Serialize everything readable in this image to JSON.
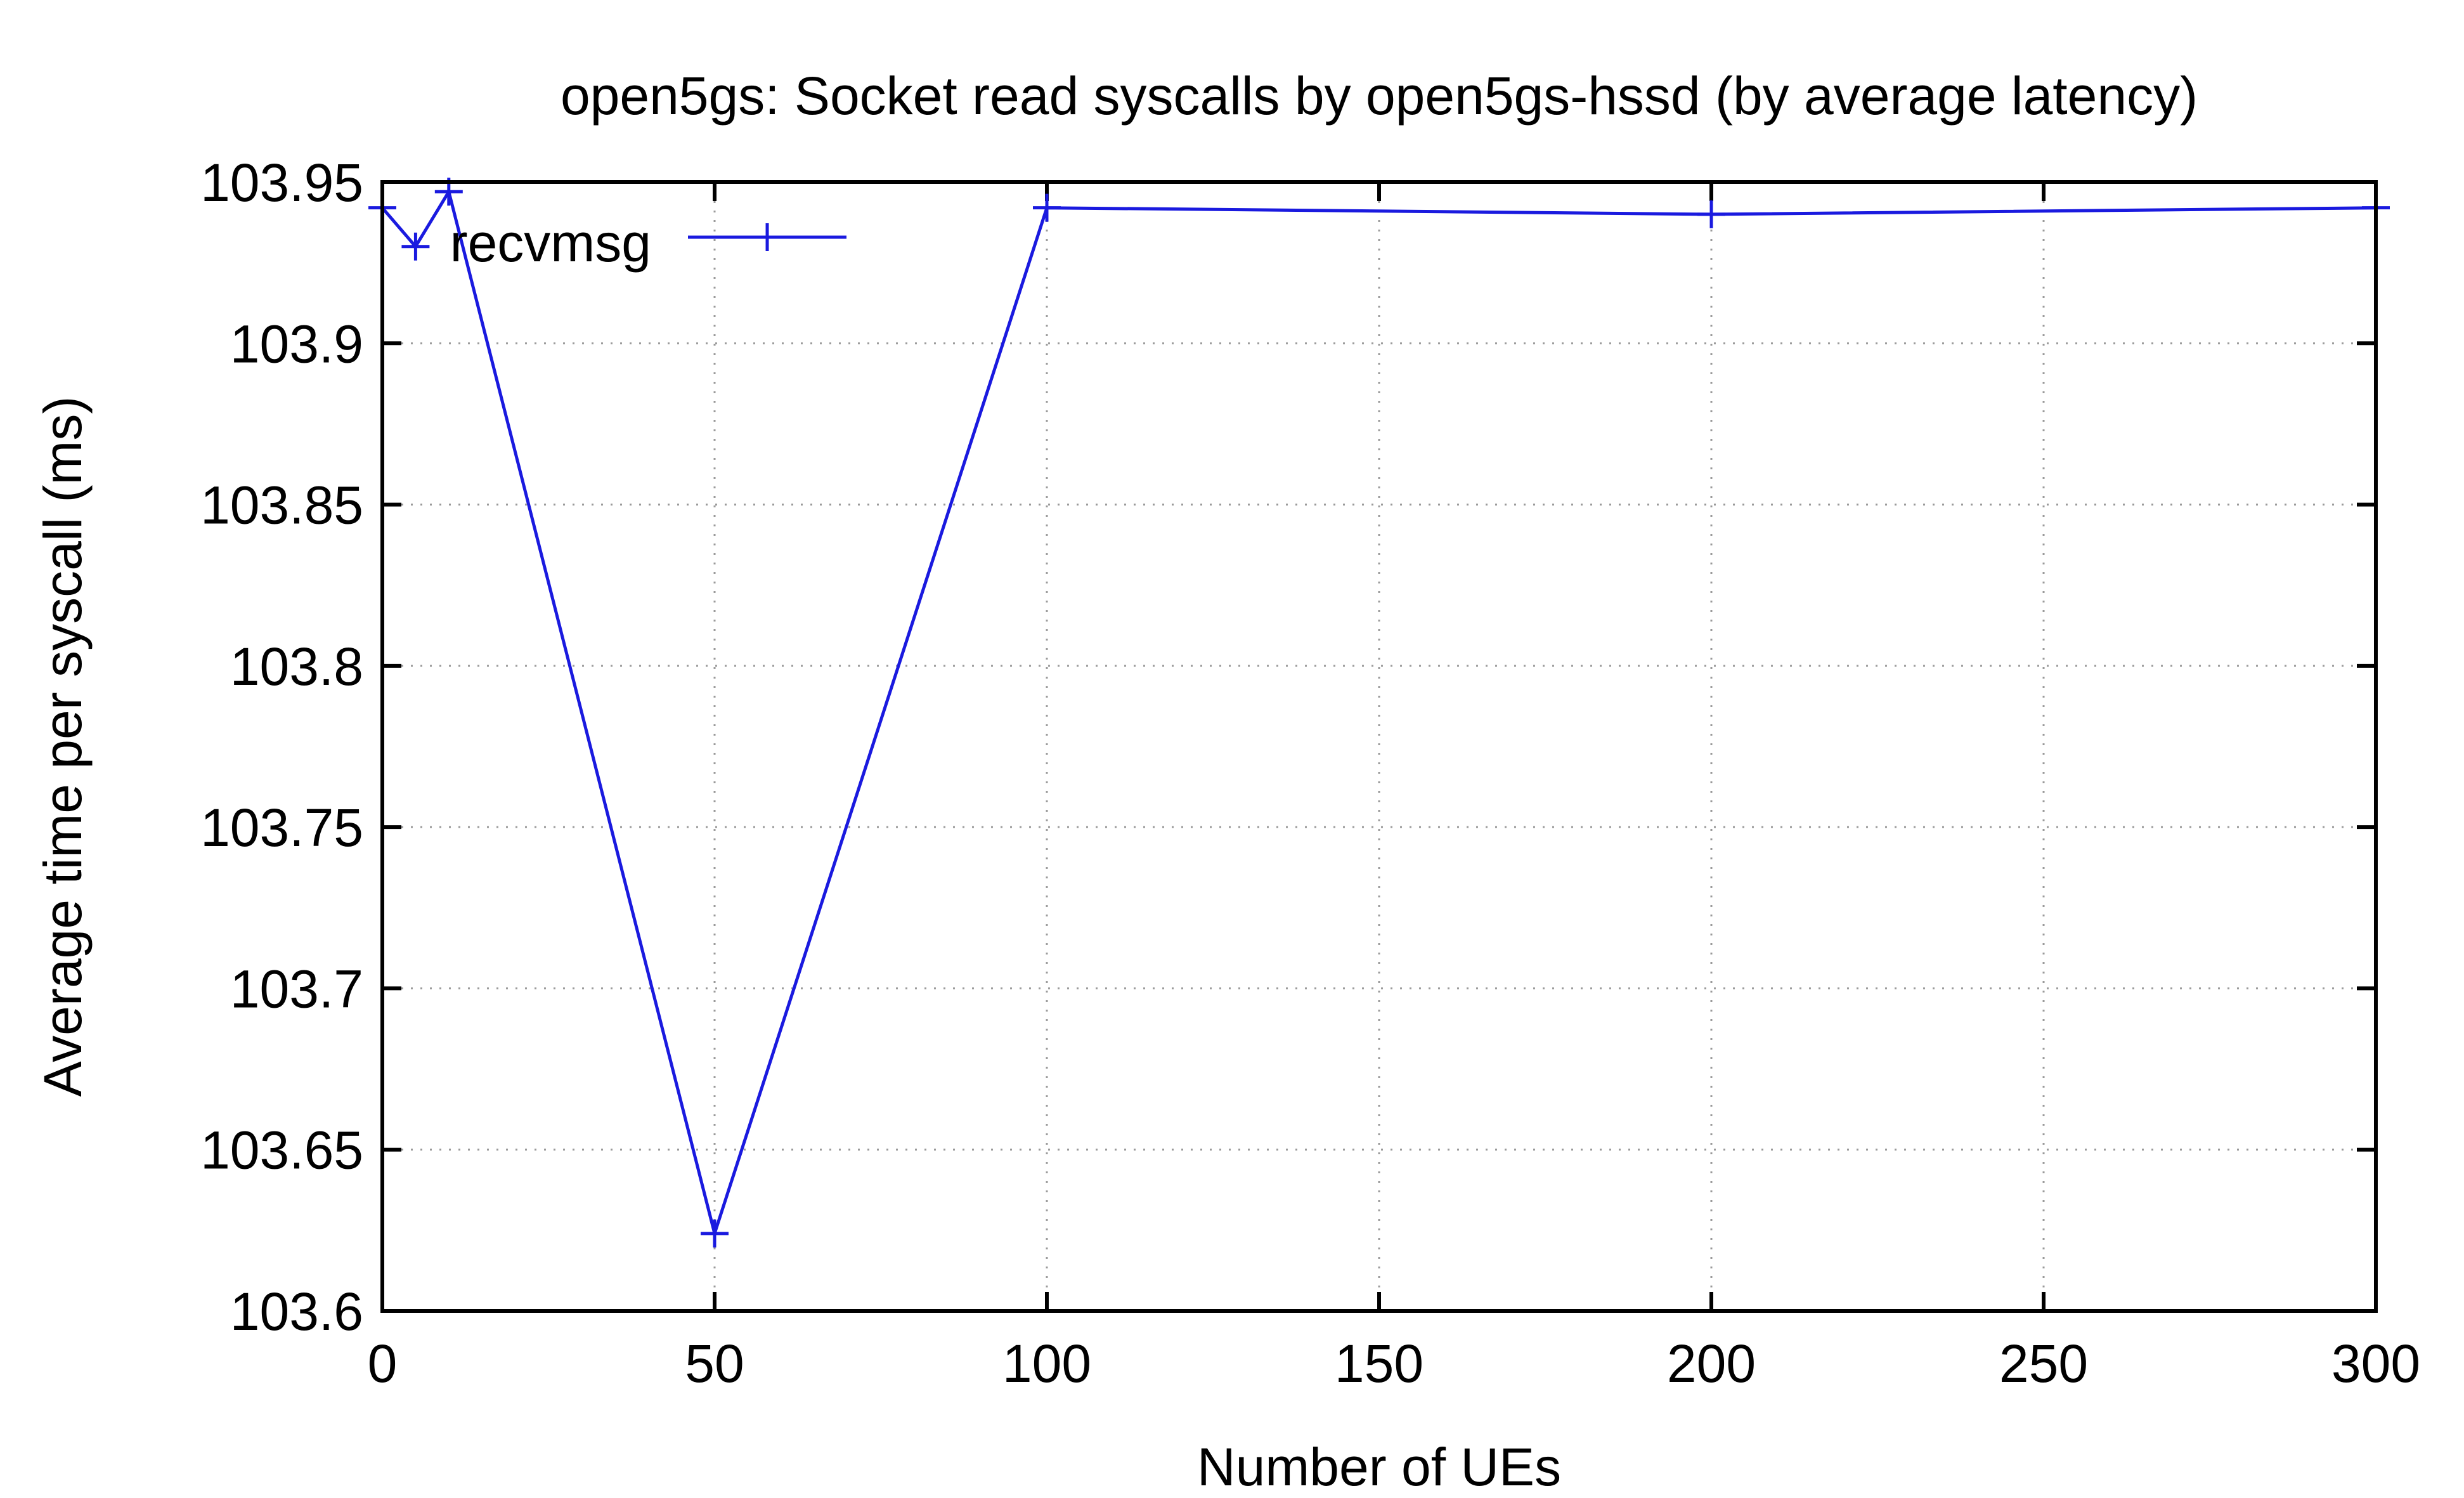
{
  "chart_data": {
    "type": "line",
    "title": "open5gs: Socket read syscalls by open5gs-hssd (by average latency)",
    "xlabel": "Number of UEs",
    "ylabel": "Average time per syscall (ms)",
    "xlim": [
      0,
      300
    ],
    "ylim": [
      103.6,
      103.95
    ],
    "xticks": [
      0,
      50,
      100,
      150,
      200,
      250,
      300
    ],
    "xtick_labels": [
      "0",
      "50",
      "100",
      "150",
      "200",
      "250",
      "300"
    ],
    "yticks": [
      103.6,
      103.65,
      103.7,
      103.75,
      103.8,
      103.85,
      103.9,
      103.95
    ],
    "ytick_labels": [
      "103.6",
      "103.65",
      "103.7",
      "103.75",
      "103.8",
      "103.85",
      "103.9",
      "103.95"
    ],
    "grid": true,
    "legend_position": "top-left",
    "series": [
      {
        "name": "recvmsg",
        "color": "#1a1adf",
        "marker": "plus",
        "x": [
          0,
          5,
          10,
          50,
          100,
          200,
          300
        ],
        "y": [
          103.942,
          103.93,
          103.947,
          103.624,
          103.942,
          103.94,
          103.942
        ]
      }
    ]
  }
}
